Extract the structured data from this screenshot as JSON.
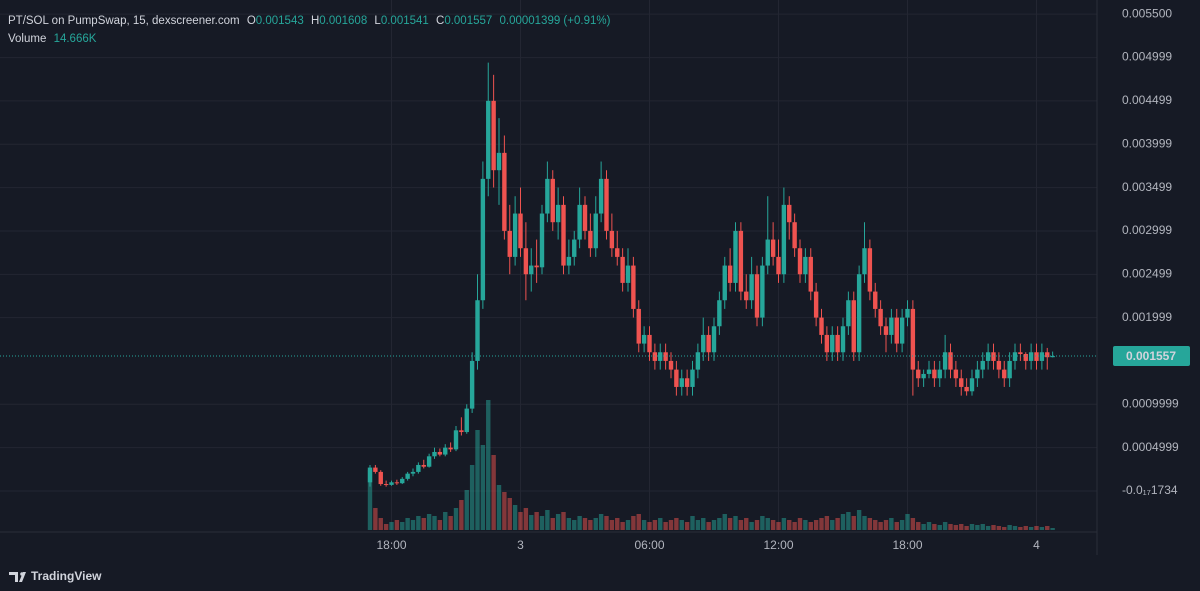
{
  "header": {
    "title": "PT/SOL on PumpSwap, 15, dexscreener.com",
    "ohlc_labels": [
      "O",
      "H",
      "L",
      "C"
    ],
    "change": "0.00001399 (+0.91%)",
    "volume_name": "Volume",
    "volume_last_label": "14.666K"
  },
  "watermark": "TradingView",
  "chart_data": {
    "type": "candlestick",
    "up_color": "#26a69a",
    "down_color": "#ef5350",
    "ylim": [
      -0.00045,
      0.005663
    ],
    "yticks": [
      {
        "value": 0.0055,
        "label": "0.005500"
      },
      0.004999,
      0.004499,
      0.003999,
      0.003499,
      0.002999,
      0.002499,
      0.001999,
      0.0009999,
      0.0004999,
      {
        "value": -1.734e-18,
        "label": "-0.0₁₇1734"
      }
    ],
    "grid": true,
    "categories": [
      null,
      null,
      null,
      null,
      "18:00",
      null,
      null,
      null,
      null,
      null,
      null,
      null,
      null,
      null,
      null,
      null,
      null,
      null,
      null,
      null,
      null,
      null,
      null,
      null,
      null,
      null,
      null,
      null,
      "3",
      null,
      null,
      null,
      null,
      null,
      null,
      null,
      null,
      null,
      null,
      null,
      null,
      null,
      null,
      null,
      null,
      null,
      null,
      null,
      null,
      null,
      null,
      null,
      "06:00",
      null,
      null,
      null,
      null,
      null,
      null,
      null,
      null,
      null,
      null,
      null,
      null,
      null,
      null,
      null,
      null,
      null,
      null,
      null,
      null,
      null,
      null,
      null,
      "12:00",
      null,
      null,
      null,
      null,
      null,
      null,
      null,
      null,
      null,
      null,
      null,
      null,
      null,
      null,
      null,
      null,
      null,
      null,
      null,
      null,
      null,
      null,
      null,
      "18:00",
      null,
      null,
      null,
      null,
      null,
      null,
      null,
      null,
      null,
      null,
      null,
      null,
      null,
      null,
      null,
      null,
      null,
      null,
      null,
      null,
      null,
      null,
      null,
      "4",
      null,
      null,
      null
    ],
    "candles": [
      [
        0.0001,
        0.0003,
        5e-05,
        0.00027
      ],
      [
        0.00027,
        0.0003,
        0.0002,
        0.00022
      ],
      [
        0.00022,
        0.00024,
        6e-05,
        8e-05
      ],
      [
        8e-05,
        0.00012,
        5e-05,
        7e-05
      ],
      [
        7e-05,
        0.00012,
        6e-05,
        0.0001
      ],
      [
        0.0001,
        0.00013,
        7e-05,
        9e-05
      ],
      [
        9e-05,
        0.00016,
        8e-05,
        0.00014
      ],
      [
        0.00014,
        0.00022,
        0.00012,
        0.0002
      ],
      [
        0.0002,
        0.00026,
        0.00017,
        0.00022
      ],
      [
        0.00022,
        0.00033,
        0.0002,
        0.0003
      ],
      [
        0.0003,
        0.00036,
        0.00026,
        0.00028
      ],
      [
        0.00028,
        0.00043,
        0.00027,
        0.0004
      ],
      [
        0.0004,
        0.0005,
        0.00037,
        0.00045
      ],
      [
        0.00045,
        0.00049,
        0.0004,
        0.00042
      ],
      [
        0.00042,
        0.00054,
        0.0004,
        0.0005
      ],
      [
        0.0005,
        0.00056,
        0.00045,
        0.00048
      ],
      [
        0.00048,
        0.00075,
        0.00046,
        0.0007
      ],
      [
        0.0007,
        0.00085,
        0.00064,
        0.00068
      ],
      [
        0.00068,
        0.001,
        0.00066,
        0.00095
      ],
      [
        0.00095,
        0.0016,
        0.0009,
        0.0015
      ],
      [
        0.0015,
        0.0025,
        0.0014,
        0.0022
      ],
      [
        0.0022,
        0.0038,
        0.0021,
        0.0036
      ],
      [
        0.0036,
        0.00494,
        0.0034,
        0.0045
      ],
      [
        0.0045,
        0.0048,
        0.0035,
        0.0037
      ],
      [
        0.0037,
        0.0043,
        0.0033,
        0.0039
      ],
      [
        0.0039,
        0.0041,
        0.0029,
        0.003
      ],
      [
        0.003,
        0.0033,
        0.0025,
        0.0027
      ],
      [
        0.0027,
        0.0034,
        0.0026,
        0.0032
      ],
      [
        0.0032,
        0.0035,
        0.0027,
        0.0028
      ],
      [
        0.0028,
        0.0031,
        0.0022,
        0.0025
      ],
      [
        0.0025,
        0.0028,
        0.0023,
        0.0026
      ],
      [
        0.0026,
        0.0029,
        0.0024,
        0.00258
      ],
      [
        0.00258,
        0.0033,
        0.0025,
        0.0032
      ],
      [
        0.0032,
        0.0038,
        0.0031,
        0.0036
      ],
      [
        0.0036,
        0.0037,
        0.003,
        0.0031
      ],
      [
        0.0031,
        0.0035,
        0.0029,
        0.0033
      ],
      [
        0.0033,
        0.0034,
        0.0025,
        0.0026
      ],
      [
        0.0026,
        0.0029,
        0.0025,
        0.0027
      ],
      [
        0.0027,
        0.003,
        0.0026,
        0.0029
      ],
      [
        0.0029,
        0.0035,
        0.0028,
        0.0033
      ],
      [
        0.0033,
        0.0034,
        0.0029,
        0.003
      ],
      [
        0.003,
        0.0032,
        0.0027,
        0.0028
      ],
      [
        0.0028,
        0.0034,
        0.0027,
        0.0032
      ],
      [
        0.0032,
        0.0038,
        0.0031,
        0.0036
      ],
      [
        0.0036,
        0.0037,
        0.0029,
        0.003
      ],
      [
        0.003,
        0.0032,
        0.0027,
        0.0028
      ],
      [
        0.0028,
        0.003,
        0.0026,
        0.0027
      ],
      [
        0.0027,
        0.0028,
        0.0023,
        0.0024
      ],
      [
        0.0024,
        0.0028,
        0.0023,
        0.0026
      ],
      [
        0.0026,
        0.0027,
        0.002,
        0.0021
      ],
      [
        0.0021,
        0.0022,
        0.0016,
        0.0017
      ],
      [
        0.0017,
        0.0019,
        0.0016,
        0.0018
      ],
      [
        0.0018,
        0.0019,
        0.0015,
        0.0016
      ],
      [
        0.0016,
        0.0017,
        0.0014,
        0.0015
      ],
      [
        0.0015,
        0.0017,
        0.0014,
        0.0016
      ],
      [
        0.0016,
        0.0017,
        0.0014,
        0.0015
      ],
      [
        0.0015,
        0.0016,
        0.0013,
        0.0014
      ],
      [
        0.0014,
        0.0015,
        0.0011,
        0.0012
      ],
      [
        0.0012,
        0.0014,
        0.0011,
        0.0013
      ],
      [
        0.0013,
        0.0014,
        0.0011,
        0.0012
      ],
      [
        0.0012,
        0.0015,
        0.0011,
        0.0014
      ],
      [
        0.0014,
        0.0017,
        0.0013,
        0.0016
      ],
      [
        0.0016,
        0.002,
        0.0015,
        0.0018
      ],
      [
        0.0018,
        0.0019,
        0.0015,
        0.0016
      ],
      [
        0.0016,
        0.002,
        0.0015,
        0.0019
      ],
      [
        0.0019,
        0.0023,
        0.0018,
        0.0022
      ],
      [
        0.0022,
        0.0027,
        0.0021,
        0.0026
      ],
      [
        0.0026,
        0.0028,
        0.0023,
        0.0024
      ],
      [
        0.0024,
        0.0031,
        0.0023,
        0.003
      ],
      [
        0.003,
        0.0031,
        0.0022,
        0.0023
      ],
      [
        0.0023,
        0.0025,
        0.0021,
        0.0022
      ],
      [
        0.0022,
        0.0027,
        0.0021,
        0.0025
      ],
      [
        0.0025,
        0.0026,
        0.0019,
        0.002
      ],
      [
        0.002,
        0.0027,
        0.0019,
        0.0026
      ],
      [
        0.0026,
        0.0034,
        0.0025,
        0.0029
      ],
      [
        0.0029,
        0.0031,
        0.0026,
        0.0027
      ],
      [
        0.0027,
        0.0029,
        0.0024,
        0.0025
      ],
      [
        0.0025,
        0.0035,
        0.0024,
        0.0033
      ],
      [
        0.0033,
        0.0034,
        0.0029,
        0.0031
      ],
      [
        0.0031,
        0.0032,
        0.0027,
        0.0028
      ],
      [
        0.0028,
        0.0029,
        0.0024,
        0.0025
      ],
      [
        0.0025,
        0.0028,
        0.0024,
        0.0027
      ],
      [
        0.0027,
        0.0028,
        0.0022,
        0.0023
      ],
      [
        0.0023,
        0.0024,
        0.0019,
        0.002
      ],
      [
        0.002,
        0.0021,
        0.0017,
        0.0018
      ],
      [
        0.0018,
        0.0019,
        0.0015,
        0.0016
      ],
      [
        0.0016,
        0.0019,
        0.0015,
        0.0018
      ],
      [
        0.0018,
        0.0019,
        0.0015,
        0.0016
      ],
      [
        0.0016,
        0.002,
        0.0015,
        0.0019
      ],
      [
        0.0019,
        0.0023,
        0.0018,
        0.0022
      ],
      [
        0.0022,
        0.0023,
        0.0015,
        0.0016
      ],
      [
        0.0016,
        0.0026,
        0.0015,
        0.0025
      ],
      [
        0.0025,
        0.0031,
        0.0024,
        0.0028
      ],
      [
        0.0028,
        0.0029,
        0.0022,
        0.0023
      ],
      [
        0.0023,
        0.0024,
        0.002,
        0.0021
      ],
      [
        0.0021,
        0.0022,
        0.0018,
        0.0019
      ],
      [
        0.0019,
        0.002,
        0.0016,
        0.0018
      ],
      [
        0.0018,
        0.0021,
        0.0017,
        0.002
      ],
      [
        0.002,
        0.0021,
        0.0016,
        0.0017
      ],
      [
        0.0017,
        0.0021,
        0.0016,
        0.002
      ],
      [
        0.002,
        0.0022,
        0.0019,
        0.0021
      ],
      [
        0.0021,
        0.0022,
        0.0011,
        0.0014
      ],
      [
        0.0014,
        0.0015,
        0.0012,
        0.0013
      ],
      [
        0.0013,
        0.0014,
        0.0012,
        0.00135
      ],
      [
        0.00135,
        0.0015,
        0.0013,
        0.0014
      ],
      [
        0.0014,
        0.0015,
        0.0012,
        0.0013
      ],
      [
        0.0013,
        0.0015,
        0.0012,
        0.0014
      ],
      [
        0.0014,
        0.0018,
        0.0013,
        0.0016
      ],
      [
        0.0016,
        0.0017,
        0.0013,
        0.0014
      ],
      [
        0.0014,
        0.0015,
        0.0012,
        0.0013
      ],
      [
        0.0013,
        0.0014,
        0.0011,
        0.0012
      ],
      [
        0.0012,
        0.0013,
        0.0011,
        0.00115
      ],
      [
        0.00115,
        0.0014,
        0.0011,
        0.0013
      ],
      [
        0.0013,
        0.0015,
        0.0012,
        0.0014
      ],
      [
        0.0014,
        0.0016,
        0.0013,
        0.0015
      ],
      [
        0.0015,
        0.0017,
        0.0014,
        0.0016
      ],
      [
        0.0016,
        0.0017,
        0.0014,
        0.0015
      ],
      [
        0.0015,
        0.0016,
        0.0013,
        0.0014
      ],
      [
        0.0014,
        0.0015,
        0.0012,
        0.0013
      ],
      [
        0.0013,
        0.0016,
        0.0012,
        0.0015
      ],
      [
        0.0015,
        0.0017,
        0.0014,
        0.0016
      ],
      [
        0.0016,
        0.0017,
        0.0015,
        0.00158
      ],
      [
        0.00158,
        0.0016,
        0.0014,
        0.0015
      ],
      [
        0.0015,
        0.0017,
        0.0014,
        0.0016
      ],
      [
        0.0016,
        0.0017,
        0.0014,
        0.0015
      ],
      [
        0.0015,
        0.0017,
        0.0014,
        0.0016
      ],
      [
        0.0016,
        0.00165,
        0.0014,
        0.001543
      ],
      [
        0.001543,
        0.001608,
        0.001541,
        0.001557
      ]
    ],
    "volume": {
      "name": "Volume",
      "values": [
        438000,
        160600,
        87600,
        43800,
        58400,
        73000,
        58400,
        87600,
        73000,
        102200,
        87600,
        116800,
        102200,
        73000,
        131400,
        102200,
        160600,
        219000,
        292000,
        474500,
        730000,
        620500,
        949000,
        547500,
        328500,
        277400,
        233600,
        182500,
        131400,
        160600,
        109500,
        131400,
        102200,
        146000,
        87600,
        116800,
        131400,
        87600,
        73000,
        102200,
        87600,
        73000,
        87600,
        116800,
        102200,
        73000,
        87600,
        58400,
        73000,
        102200,
        116800,
        73000,
        58400,
        73000,
        87600,
        58400,
        73000,
        87600,
        73000,
        58400,
        102200,
        73000,
        87600,
        58400,
        73000,
        87600,
        116800,
        87600,
        102200,
        73000,
        87600,
        58400,
        73000,
        102200,
        87600,
        73000,
        58400,
        87600,
        73000,
        58400,
        87600,
        73000,
        58400,
        73000,
        87600,
        102200,
        73000,
        87600,
        116800,
        131400,
        102200,
        146000,
        102200,
        87600,
        73000,
        58400,
        73000,
        87600,
        58400,
        73000,
        116800,
        87600,
        58400,
        43800,
        58400,
        43800,
        36500,
        58400,
        43800,
        36500,
        43800,
        29200,
        43800,
        36500,
        43800,
        29200,
        36500,
        29200,
        21900,
        36500,
        29200,
        21900,
        29200,
        21900,
        29200,
        21900,
        29200,
        14666
      ]
    }
  }
}
